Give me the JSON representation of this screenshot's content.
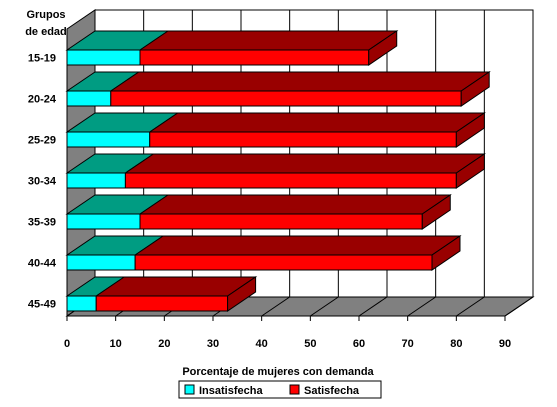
{
  "chart_data": {
    "type": "bar",
    "orientation": "horizontal",
    "stacked": true,
    "three_d": true,
    "y_title_lines": [
      "Grupos",
      "de edad"
    ],
    "xlabel": "Porcentaje de mujeres con demanda",
    "categories": [
      "15-19",
      "20-24",
      "25-29",
      "30-34",
      "35-39",
      "40-44",
      "45-49"
    ],
    "series": [
      {
        "name": "Insatisfecha",
        "values": [
          15,
          9,
          17,
          12,
          15,
          14,
          6
        ],
        "color": "#00ffff",
        "top_color": "#009c82"
      },
      {
        "name": "Satisfecha",
        "values": [
          47,
          72,
          63,
          68,
          58,
          61,
          27
        ],
        "color": "#ff0000",
        "top_color": "#990000"
      }
    ],
    "xlim": [
      0,
      90
    ],
    "xticks": [
      0,
      10,
      20,
      30,
      40,
      50,
      60,
      70,
      80,
      90
    ],
    "grid": true,
    "legend": "bottom"
  }
}
